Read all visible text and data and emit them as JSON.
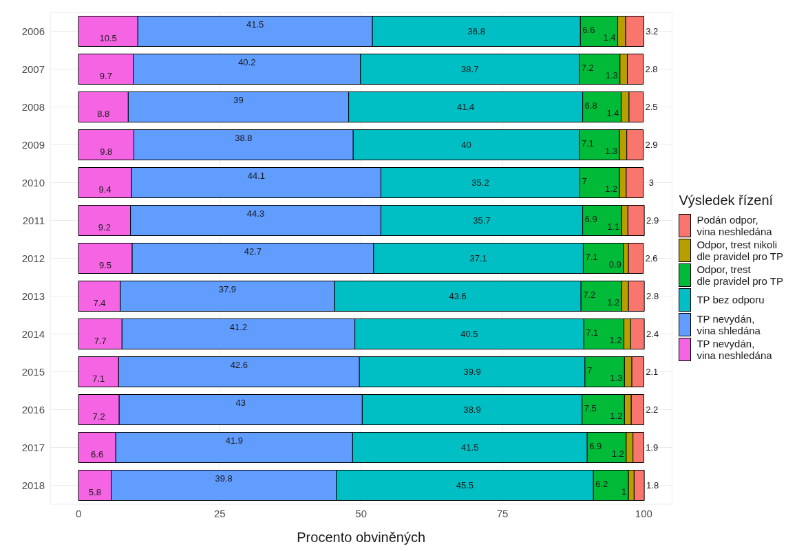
{
  "chart_data": {
    "type": "bar",
    "orientation": "horizontal",
    "stacked": true,
    "xlabel": "Procento obviněných",
    "legend_title": "Výsledek řízení",
    "legend": "right",
    "grid": true,
    "data_labels": true,
    "categories": [
      "2006",
      "2007",
      "2008",
      "2009",
      "2010",
      "2011",
      "2012",
      "2013",
      "2014",
      "2015",
      "2016",
      "2017",
      "2018"
    ],
    "xlim": [
      -5,
      105
    ],
    "xticks": [
      0,
      25,
      50,
      75,
      100
    ],
    "series": [
      {
        "name": "TP nevydán,\nvina neshledána",
        "color": "#f564e3",
        "values": [
          10.5,
          9.7,
          8.8,
          9.8,
          9.4,
          9.2,
          9.5,
          7.4,
          7.7,
          7.1,
          7.2,
          6.6,
          5.8
        ]
      },
      {
        "name": "TP nevydán,\nvina shledána",
        "color": "#619cff",
        "values": [
          41.5,
          40.2,
          39,
          38.8,
          44.1,
          44.3,
          42.7,
          37.9,
          41.2,
          42.6,
          43,
          41.9,
          39.8
        ]
      },
      {
        "name": "TP bez odporu",
        "color": "#00bfc4",
        "values": [
          36.8,
          38.7,
          41.4,
          40,
          35.2,
          35.7,
          37.1,
          43.6,
          40.5,
          39.9,
          38.9,
          41.5,
          45.5
        ]
      },
      {
        "name": "Odpor, trest\ndle pravidel pro TP",
        "color": "#00ba38",
        "values": [
          6.6,
          7.2,
          6.8,
          7.1,
          7,
          6.9,
          7.1,
          7.2,
          7.1,
          7,
          7.5,
          6.9,
          6.2
        ]
      },
      {
        "name": "Odpor, trest nikoli\ndle pravidel pro TP",
        "color": "#b79f00",
        "values": [
          1.4,
          1.3,
          1.4,
          1.3,
          1.2,
          1.1,
          0.9,
          1.2,
          1.2,
          1.3,
          1.2,
          1.2,
          1
        ]
      },
      {
        "name": "Podán odpor,\nvina neshledána",
        "color": "#f8766d",
        "values": [
          3.2,
          2.8,
          2.5,
          2.9,
          3,
          2.9,
          2.6,
          2.8,
          2.4,
          2.1,
          2.2,
          1.9,
          1.8
        ]
      }
    ]
  }
}
